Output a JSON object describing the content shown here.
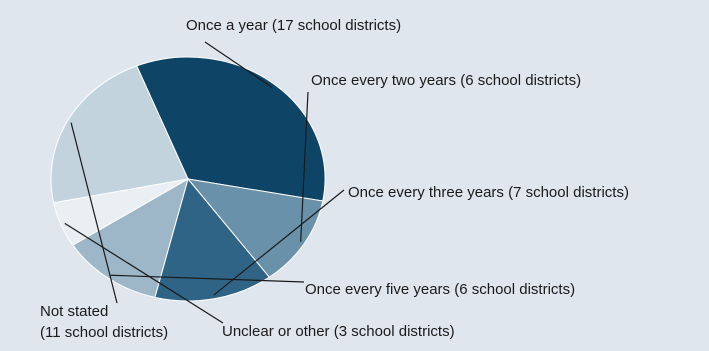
{
  "chart_data": {
    "type": "pie",
    "title": "",
    "slices": [
      {
        "label": "Once a year (17 school districts)",
        "value": 17,
        "color": "#0e4466"
      },
      {
        "label": "Once every two years (6 school districts)",
        "value": 6,
        "color": "#6a91aa"
      },
      {
        "label": "Once every three years (7 school districts)",
        "value": 7,
        "color": "#2f6486"
      },
      {
        "label": "Once every five years (6 school districts)",
        "value": 6,
        "color": "#9db7c8"
      },
      {
        "label": "Unclear or other (3 school districts)",
        "value": 3,
        "color": "#eaeff3"
      },
      {
        "label_lines": [
          "Not stated",
          "(11 school districts)"
        ],
        "value": 11,
        "color": "#c3d3de"
      }
    ],
    "background": "#dfe6ee"
  }
}
